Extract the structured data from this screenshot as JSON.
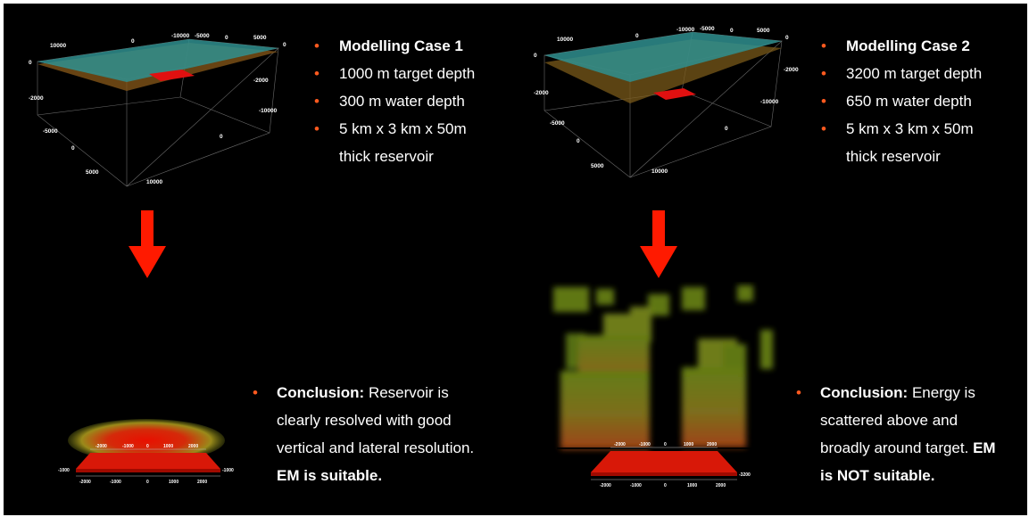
{
  "case1": {
    "bullets": [
      "Modelling Case 1",
      "1000 m target depth",
      "300 m water depth",
      "5 km x 3 km x 50m"
    ],
    "bullet_cont": "thick  reservoir",
    "conclusion_label": "Conclusion:",
    "conclusion_text": "Reservoir is",
    "conclusion_line2": "clearly resolved with good",
    "conclusion_line3": "vertical and lateral resolution.",
    "verdict": "EM is suitable.",
    "model_ticks": {
      "top": [
        "10000",
        "0",
        "-10000",
        "-5000",
        "0",
        "5000",
        "0"
      ],
      "left": [
        "0",
        "-2000",
        "-5000",
        "0",
        "5000"
      ],
      "right": [
        "-2000",
        "-10000",
        "0",
        "10000"
      ]
    },
    "inversion_ticks": {
      "top": [
        "-2000",
        "-1000",
        "0",
        "1000",
        "2000"
      ],
      "bottom": [
        "-2000",
        "-1000",
        "0",
        "1000",
        "2000"
      ],
      "left": "-1000",
      "right": "-1000"
    }
  },
  "case2": {
    "bullets": [
      "Modelling Case 2",
      "3200 m target depth",
      "650 m water depth",
      "5 km x 3 km x 50m"
    ],
    "bullet_cont": "thick  reservoir",
    "conclusion_label": "Conclusion:",
    "conclusion_text": "Energy is",
    "conclusion_line2": "scattered above and",
    "conclusion_line3": "broadly around target.",
    "verdict_part1": "EM",
    "verdict_part2": "is NOT suitable.",
    "model_ticks": {
      "top": [
        "10000",
        "0",
        "-10000",
        "-5000",
        "0",
        "5000",
        "0"
      ],
      "left": [
        "0",
        "-2000",
        "-5000",
        "0",
        "5000"
      ],
      "right": [
        "-2000",
        "-10000",
        "0",
        "10000"
      ]
    },
    "inversion_ticks": {
      "top": [
        "-2000",
        "-1000",
        "0",
        "1000",
        "2000"
      ],
      "bottom": [
        "-2000",
        "-1000",
        "0",
        "1000",
        "2000"
      ],
      "right": "-3200"
    }
  },
  "colors": {
    "bullet": "#ff5a1f",
    "arrow": "#ff1a00",
    "water": "#2f8f8f",
    "seabed": "#8a5a1a",
    "reservoir": "#e01010"
  }
}
